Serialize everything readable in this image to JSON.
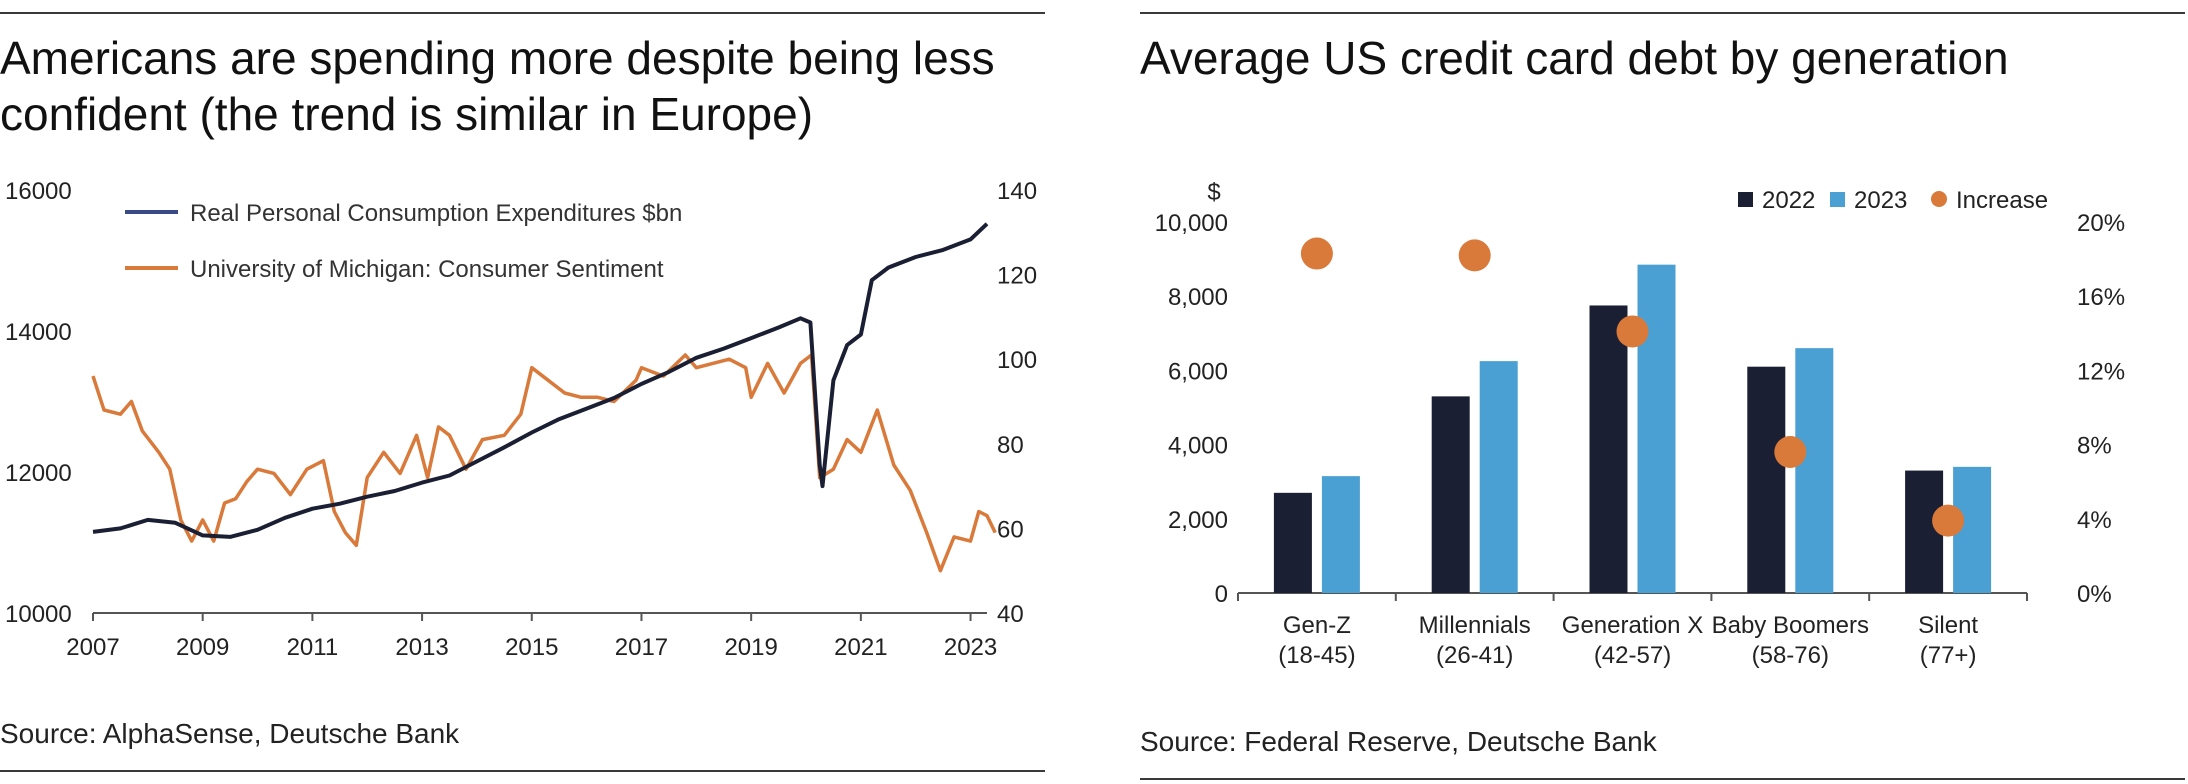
{
  "left": {
    "title": "Americans are spending more despite being less confident (the trend is similar in Europe)",
    "source": "Source: AlphaSense, Deutsche Bank"
  },
  "right": {
    "title": "Average US credit card debt by generation",
    "source": "Source: Federal Reserve, Deutsche Bank"
  },
  "colors": {
    "pce": "#1b1f33",
    "sentiment": "#d9793a",
    "bar2022": "#1b1f33",
    "bar2023": "#4aa0d3",
    "increase": "#d9793a"
  },
  "chart_data": [
    {
      "type": "line",
      "title": "Americans are spending more despite being less confident (the trend is similar in Europe)",
      "x_ticks": [
        "2007",
        "2009",
        "2011",
        "2013",
        "2015",
        "2017",
        "2019",
        "2021",
        "2023"
      ],
      "xlim": [
        2007,
        2023.3
      ],
      "y_left": {
        "ticks": [
          "10000",
          "12000",
          "14000",
          "16000"
        ],
        "ylim": [
          10000,
          16000
        ]
      },
      "y_right": {
        "ticks": [
          "40",
          "60",
          "80",
          "100",
          "120",
          "140"
        ],
        "ylim": [
          40,
          140
        ]
      },
      "legend": [
        "Real Personal Consumption Expenditures $bn",
        "University of Michigan: Consumer Sentiment"
      ],
      "legend_position": "top-left",
      "series": [
        {
          "name": "Real Personal Consumption Expenditures $bn",
          "axis": "left",
          "points": [
            [
              2007.0,
              11150
            ],
            [
              2007.5,
              11200
            ],
            [
              2008.0,
              11320
            ],
            [
              2008.5,
              11280
            ],
            [
              2009.0,
              11100
            ],
            [
              2009.5,
              11080
            ],
            [
              2010.0,
              11180
            ],
            [
              2010.5,
              11350
            ],
            [
              2011.0,
              11480
            ],
            [
              2011.5,
              11550
            ],
            [
              2012.0,
              11650
            ],
            [
              2012.5,
              11730
            ],
            [
              2013.0,
              11850
            ],
            [
              2013.5,
              11950
            ],
            [
              2014.0,
              12150
            ],
            [
              2014.5,
              12350
            ],
            [
              2015.0,
              12560
            ],
            [
              2015.5,
              12750
            ],
            [
              2016.0,
              12900
            ],
            [
              2016.5,
              13050
            ],
            [
              2017.0,
              13250
            ],
            [
              2017.5,
              13420
            ],
            [
              2018.0,
              13620
            ],
            [
              2018.5,
              13750
            ],
            [
              2019.0,
              13900
            ],
            [
              2019.5,
              14050
            ],
            [
              2019.9,
              14180
            ],
            [
              2020.08,
              14120
            ],
            [
              2020.25,
              12100
            ],
            [
              2020.3,
              11800
            ],
            [
              2020.5,
              13300
            ],
            [
              2020.75,
              13800
            ],
            [
              2021.0,
              13950
            ],
            [
              2021.2,
              14720
            ],
            [
              2021.5,
              14900
            ],
            [
              2022.0,
              15050
            ],
            [
              2022.5,
              15150
            ],
            [
              2023.0,
              15300
            ],
            [
              2023.3,
              15520
            ]
          ]
        },
        {
          "name": "University of Michigan: Consumer Sentiment",
          "axis": "right",
          "points": [
            [
              2007.0,
              96
            ],
            [
              2007.2,
              88
            ],
            [
              2007.5,
              87
            ],
            [
              2007.7,
              90
            ],
            [
              2007.9,
              83
            ],
            [
              2008.2,
              78
            ],
            [
              2008.4,
              74
            ],
            [
              2008.6,
              62
            ],
            [
              2008.8,
              57
            ],
            [
              2009.0,
              62
            ],
            [
              2009.2,
              57
            ],
            [
              2009.4,
              66
            ],
            [
              2009.6,
              67
            ],
            [
              2009.8,
              71
            ],
            [
              2010.0,
              74
            ],
            [
              2010.3,
              73
            ],
            [
              2010.6,
              68
            ],
            [
              2010.9,
              74
            ],
            [
              2011.2,
              76
            ],
            [
              2011.4,
              64
            ],
            [
              2011.6,
              59
            ],
            [
              2011.8,
              56
            ],
            [
              2012.0,
              72
            ],
            [
              2012.3,
              78
            ],
            [
              2012.6,
              73
            ],
            [
              2012.9,
              82
            ],
            [
              2013.1,
              72
            ],
            [
              2013.3,
              84
            ],
            [
              2013.5,
              82
            ],
            [
              2013.8,
              74
            ],
            [
              2014.1,
              81
            ],
            [
              2014.5,
              82
            ],
            [
              2014.8,
              87
            ],
            [
              2015.0,
              98
            ],
            [
              2015.3,
              95
            ],
            [
              2015.6,
              92
            ],
            [
              2015.9,
              91
            ],
            [
              2016.2,
              91
            ],
            [
              2016.5,
              90
            ],
            [
              2016.9,
              95
            ],
            [
              2017.0,
              98
            ],
            [
              2017.4,
              96
            ],
            [
              2017.8,
              101
            ],
            [
              2018.0,
              98
            ],
            [
              2018.3,
              99
            ],
            [
              2018.6,
              100
            ],
            [
              2018.9,
              98
            ],
            [
              2019.0,
              91
            ],
            [
              2019.3,
              99
            ],
            [
              2019.6,
              92
            ],
            [
              2019.9,
              99
            ],
            [
              2020.1,
              101
            ],
            [
              2020.25,
              72
            ],
            [
              2020.5,
              74
            ],
            [
              2020.75,
              81
            ],
            [
              2021.0,
              78
            ],
            [
              2021.3,
              88
            ],
            [
              2021.6,
              75
            ],
            [
              2021.9,
              69
            ],
            [
              2022.2,
              59
            ],
            [
              2022.45,
              50
            ],
            [
              2022.7,
              58
            ],
            [
              2023.0,
              57
            ],
            [
              2023.15,
              64
            ],
            [
              2023.3,
              63
            ],
            [
              2023.45,
              59
            ]
          ]
        }
      ]
    },
    {
      "type": "bar",
      "title": "Average US credit card debt by generation",
      "categories": [
        "Gen-Z (18-45)",
        "Millennials (26-41)",
        "Generation X (42-57)",
        "Baby Boomers (58-76)",
        "Silent (77+)"
      ],
      "category_lines": [
        [
          "Gen-Z",
          "(18-45)"
        ],
        [
          "Millennials",
          "(26-41)"
        ],
        [
          "Generation X",
          "(42-57)"
        ],
        [
          "Baby Boomers",
          "(58-76)"
        ],
        [
          "Silent",
          "(77+)"
        ]
      ],
      "ylabel": "$",
      "y_left": {
        "ticks": [
          "0",
          "2,000",
          "4,000",
          "6,000",
          "8,000",
          "10,000"
        ],
        "ylim": [
          0,
          10000
        ]
      },
      "y_right": {
        "ticks": [
          "0%",
          "4%",
          "8%",
          "12%",
          "16%",
          "20%"
        ],
        "ylim": [
          0,
          20
        ]
      },
      "legend": [
        "2022",
        "2023",
        "Increase"
      ],
      "legend_position": "top-right",
      "series": [
        {
          "name": "2022",
          "axis": "left",
          "kind": "bar",
          "values": [
            2700,
            5300,
            7750,
            6100,
            3300
          ]
        },
        {
          "name": "2023",
          "axis": "left",
          "kind": "bar",
          "values": [
            3150,
            6250,
            8850,
            6600,
            3400
          ]
        },
        {
          "name": "Increase",
          "axis": "right",
          "kind": "dot",
          "values": [
            18.3,
            18.2,
            14.1,
            7.6,
            3.9
          ]
        }
      ]
    }
  ]
}
